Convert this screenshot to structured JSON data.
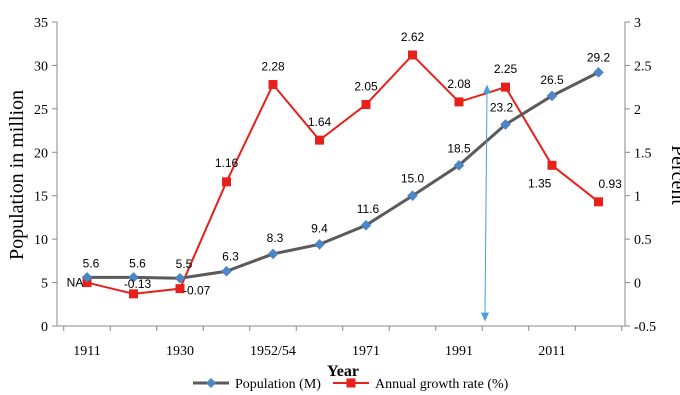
{
  "chart_data": {
    "type": "line",
    "title": "",
    "xlabel": "Year",
    "ylabel_left": "Population in million",
    "ylabel_right": "Percent",
    "ylim_left": [
      0,
      35
    ],
    "ylim_right": [
      -0.5,
      3
    ],
    "yticks_left": [
      "0",
      "5",
      "10",
      "15",
      "20",
      "25",
      "30",
      "35"
    ],
    "yticks_right": [
      "-0.5",
      "0",
      "0.5",
      "1",
      "1.5",
      "2",
      "2.5",
      "3"
    ],
    "x_tick_labels": [
      {
        "index": 0,
        "label": "1911"
      },
      {
        "index": 2,
        "label": "1930"
      },
      {
        "index": 4,
        "label": "1952/54"
      },
      {
        "index": 6,
        "label": "1971"
      },
      {
        "index": 8,
        "label": "1991"
      },
      {
        "index": 10,
        "label": "2011"
      }
    ],
    "num_points": 12,
    "series": [
      {
        "name": "Population (M)",
        "axis": "left",
        "color": "#5a5a5a",
        "marker": "diamond",
        "marker_color": "#4a86c8",
        "values": [
          5.6,
          5.6,
          5.5,
          6.3,
          8.3,
          9.4,
          11.6,
          15.0,
          18.5,
          23.2,
          26.5,
          29.2
        ],
        "labels": [
          "5.6",
          "5.6",
          "5.5",
          "6.3",
          "8.3",
          "9.4",
          "11.6",
          "15.0",
          "18.5",
          "23.2",
          "26.5",
          "29.2"
        ]
      },
      {
        "name": "Annual growth rate (%)",
        "axis": "right",
        "color": "#e8201a",
        "marker": "square",
        "marker_color": "#e8201a",
        "values": [
          0,
          -0.13,
          -0.07,
          1.16,
          2.28,
          1.64,
          2.05,
          2.62,
          2.08,
          2.25,
          1.35,
          0.93
        ],
        "labels": [
          "NA",
          "-0.13",
          "-0.07",
          "1.16",
          "2.28",
          "1.64",
          "2.05",
          "2.62",
          "2.08",
          "2.25",
          "1.35",
          "0.93"
        ]
      }
    ],
    "annotation_arrow": {
      "color": "#4a9fd8"
    },
    "legend_position": "bottom",
    "grid": false
  }
}
